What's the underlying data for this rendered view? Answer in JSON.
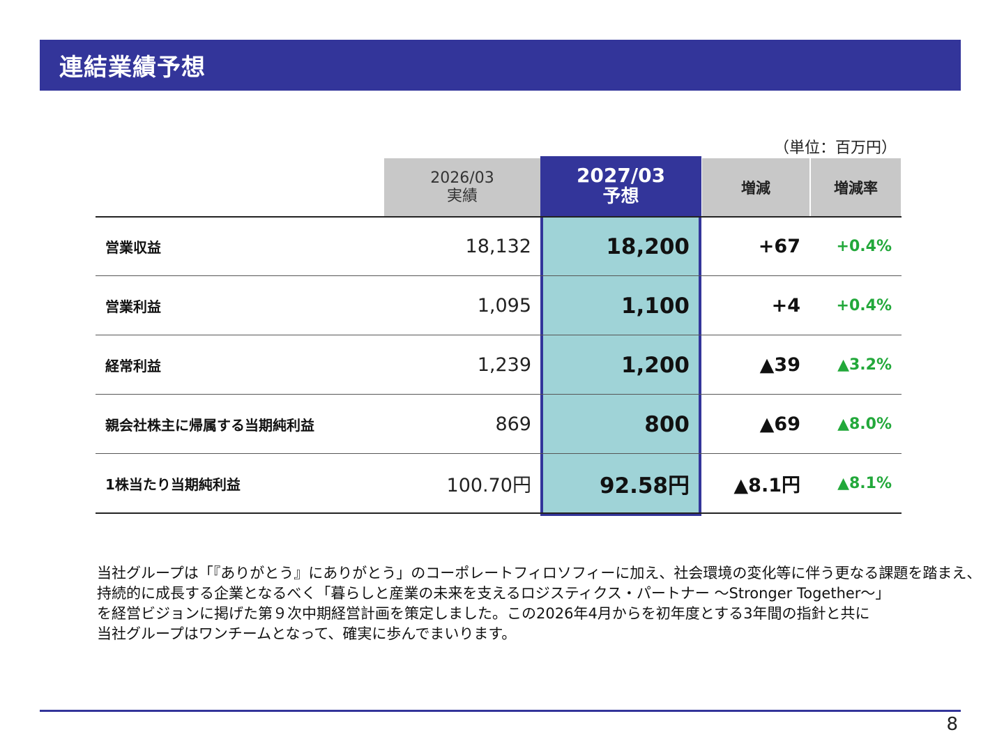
{
  "header": {
    "title": "連結業績予想"
  },
  "unit_label": "（単位：百万円）",
  "columns": {
    "actual_period": "2026/03",
    "actual_label": "実績",
    "forecast_period": "2027/03",
    "forecast_label": "予想",
    "diff": "増減",
    "rate": "増減率"
  },
  "rows": [
    {
      "label": "営業収益",
      "actual": "18,132",
      "forecast": "18,200",
      "diff": "+67",
      "rate": "+0.4%"
    },
    {
      "label": "営業利益",
      "actual": "1,095",
      "forecast": "1,100",
      "diff": "+4",
      "rate": "+0.4%"
    },
    {
      "label": "経常利益",
      "actual": "1,239",
      "forecast": "1,200",
      "diff": "▲39",
      "rate": "▲3.2%"
    },
    {
      "label": "親会社株主に帰属する当期純利益",
      "actual": "869",
      "forecast": "800",
      "diff": "▲69",
      "rate": "▲8.0%"
    },
    {
      "label": "1株当たり当期純利益",
      "actual": "100.70円",
      "forecast": "92.58円",
      "diff": "▲8.1円",
      "rate": "▲8.1%"
    }
  ],
  "body_text": [
    "当社グループは「『ありがとう』にありがとう」のコーポレートフィロソフィーに加え、社会環境の変化等に伴う更なる課題を踏まえ、",
    "持続的に成長する企業となるべく「暮らしと産業の未来を支えるロジスティクス・パートナー ～Stronger Together～」",
    "を経営ビジョンに掲げた第９次中期経営計画を策定しました。この2026年4月からを初年度とする3年間の指針と共に",
    "当社グループはワンチームとなって、確実に歩んでまいります。"
  ],
  "page_number": "8",
  "colors": {
    "brand": "#33359a",
    "forecast_fill": "#9fd3d7",
    "positive_rate": "#22a83a",
    "header_gray": "#c8c8c8"
  }
}
